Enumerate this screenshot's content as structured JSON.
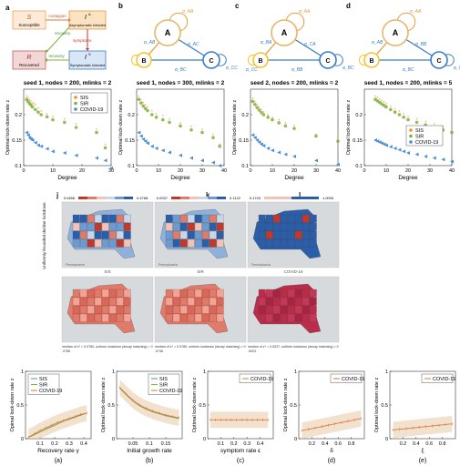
{
  "panel_letters": {
    "a": "a",
    "b": "b",
    "c": "c",
    "d": "d",
    "j": "j",
    "k": "k",
    "l": "l"
  },
  "compartment": {
    "S": {
      "sym": "S",
      "label": "Susceptible"
    },
    "R": {
      "sym": "R",
      "label": "Recovered"
    },
    "A": {
      "sym": "I",
      "sup": "A",
      "label": "Asymptomatic Infected"
    },
    "Sy": {
      "sym": "I",
      "sup": "S",
      "label": "Symptomatic Infected"
    },
    "contagion": "contagion",
    "recovery1": "recovery",
    "recovery2": "recovery",
    "symptoms": "symptoms"
  },
  "networks": {
    "nodes": [
      "A",
      "B",
      "C"
    ],
    "colors": {
      "A": "#e8b66a",
      "B": "#f2c531",
      "C": "#3b7dc4",
      "edge_orange": "#e69a3a",
      "edge_blue": "#3b7dc4"
    },
    "labels": {
      "b": [
        "α_AA",
        "α_AB",
        "α_AC",
        "α_BC",
        "α_CC"
      ],
      "c": [
        "α_AA",
        "α_BA",
        "α_CA",
        "α_BB",
        "α_BC",
        "α_CC"
      ],
      "d": [
        "α_AA",
        "α_AB",
        "α_BB",
        "α_BC",
        "α_CC"
      ]
    }
  },
  "colors": {
    "sis": "#f28e2b",
    "sir": "#7fb03a",
    "covid": "#4a8fd6",
    "covid_dark": "#2b6fc0",
    "line_orange": "#e07b39",
    "band": "#e8c9a8"
  },
  "scatter_titles": [
    "seed 1, nodes = 200, mlinks = 2",
    "seed 1, nodes = 300, mlinks = 2",
    "seed 2, nodes = 200, mlinks = 2",
    "seed 1, nodes = 200, mlinks = 5"
  ],
  "scatter_xlabel": "Degree",
  "scatter_ylabel": "Optimal lock-down rate z",
  "legend": {
    "sis": "SIS",
    "sir": "SIR",
    "covid": "COVID-19"
  },
  "map": {
    "col_titles": [
      "SIS",
      "SIR",
      "COVID-19"
    ],
    "ranges": [
      [
        "0.0456",
        "0.4768"
      ],
      [
        "0.0037",
        "0.1122"
      ],
      [
        "0.1743",
        "1.0000"
      ]
    ],
    "side_label": "Uniformly-bounded decline lockdown",
    "captions": [
      "median of z* = 0.0780, uniform lockdown (decay matching) = 0.0788",
      "median of z* = 0.0780, uniform lockdown (decay matching) = 0.0746",
      "median of z* = 0.0037, uniform lockdown (decay matching) = 0.0023"
    ],
    "region_labels": [
      "Ontario",
      "Pennsylvania",
      "Vermont"
    ]
  },
  "chart_data": [
    {
      "type": "scatter",
      "title": "seed 1, nodes = 200, mlinks = 2",
      "xlabel": "Degree",
      "ylabel": "Optimal lock-down rate z",
      "xlim": [
        0,
        30
      ],
      "ylim": [
        0.1,
        0.25
      ],
      "xticks": [
        0,
        10,
        20,
        30
      ],
      "yticks": [
        0.1,
        0.15,
        0.2
      ],
      "series": [
        {
          "name": "SIS",
          "x": [
            1,
            1.5,
            2,
            2.5,
            3,
            3.5,
            4,
            5,
            6,
            8,
            10,
            14,
            18,
            25,
            28
          ],
          "y": [
            0.235,
            0.232,
            0.228,
            0.225,
            0.222,
            0.22,
            0.218,
            0.212,
            0.205,
            0.2,
            0.195,
            0.19,
            0.18,
            0.17,
            0.14
          ]
        },
        {
          "name": "SIR",
          "x": [
            1,
            1.5,
            2,
            2.5,
            3,
            4,
            5,
            6,
            8,
            10,
            14,
            18,
            25,
            28
          ],
          "y": [
            0.23,
            0.226,
            0.222,
            0.219,
            0.215,
            0.21,
            0.205,
            0.2,
            0.196,
            0.19,
            0.185,
            0.175,
            0.165,
            0.135
          ]
        },
        {
          "name": "COVID-19",
          "x": [
            1,
            1.5,
            2,
            2.5,
            3,
            4,
            5,
            6,
            8,
            10,
            14,
            18,
            25,
            28,
            30
          ],
          "y": [
            0.165,
            0.16,
            0.155,
            0.152,
            0.15,
            0.145,
            0.14,
            0.138,
            0.133,
            0.128,
            0.125,
            0.12,
            0.115,
            0.11,
            0.095
          ]
        }
      ]
    },
    {
      "type": "scatter",
      "title": "seed 1, nodes = 300, mlinks = 2",
      "xlim": [
        0,
        40
      ],
      "ylim": [
        0.1,
        0.25
      ],
      "xticks": [
        0,
        10,
        20,
        30,
        40
      ],
      "yticks": [
        0.1,
        0.15,
        0.2
      ],
      "series": [
        {
          "name": "SIS",
          "x": [
            1,
            2,
            3,
            4,
            5,
            7,
            9,
            12,
            15,
            20,
            25,
            30,
            35,
            38
          ],
          "y": [
            0.235,
            0.228,
            0.222,
            0.218,
            0.213,
            0.206,
            0.2,
            0.196,
            0.19,
            0.182,
            0.175,
            0.17,
            0.16,
            0.14
          ]
        },
        {
          "name": "SIR",
          "x": [
            1,
            2,
            3,
            4,
            5,
            7,
            9,
            12,
            15,
            20,
            25,
            30,
            35,
            38
          ],
          "y": [
            0.23,
            0.223,
            0.217,
            0.212,
            0.208,
            0.2,
            0.195,
            0.19,
            0.185,
            0.178,
            0.17,
            0.165,
            0.155,
            0.138
          ]
        },
        {
          "name": "COVID-19",
          "x": [
            1,
            2,
            3,
            4,
            5,
            7,
            9,
            12,
            15,
            20,
            25,
            30,
            35,
            38
          ],
          "y": [
            0.165,
            0.158,
            0.152,
            0.148,
            0.144,
            0.138,
            0.134,
            0.13,
            0.126,
            0.12,
            0.115,
            0.11,
            0.106,
            0.1
          ]
        }
      ]
    },
    {
      "type": "scatter",
      "title": "seed 2, nodes = 200, mlinks = 2",
      "xlim": [
        0,
        40
      ],
      "ylim": [
        0.1,
        0.25
      ],
      "xticks": [
        0,
        10,
        20,
        30,
        40
      ],
      "yticks": [
        0.1,
        0.15,
        0.2
      ],
      "series": [
        {
          "name": "SIS",
          "x": [
            1,
            2,
            3,
            4,
            5,
            6,
            8,
            10,
            13,
            16,
            20,
            30,
            40
          ],
          "y": [
            0.23,
            0.224,
            0.218,
            0.213,
            0.208,
            0.204,
            0.198,
            0.193,
            0.188,
            0.182,
            0.177,
            0.16,
            0.15
          ]
        },
        {
          "name": "SIR",
          "x": [
            1,
            2,
            3,
            4,
            5,
            6,
            8,
            10,
            13,
            16,
            20,
            30,
            40
          ],
          "y": [
            0.226,
            0.22,
            0.214,
            0.209,
            0.204,
            0.2,
            0.195,
            0.19,
            0.184,
            0.178,
            0.173,
            0.158,
            0.148
          ]
        },
        {
          "name": "COVID-19",
          "x": [
            1,
            2,
            3,
            4,
            5,
            6,
            8,
            10,
            13,
            16,
            20,
            30,
            40
          ],
          "y": [
            0.16,
            0.155,
            0.15,
            0.146,
            0.142,
            0.139,
            0.134,
            0.13,
            0.126,
            0.122,
            0.118,
            0.11,
            0.102
          ]
        }
      ]
    },
    {
      "type": "scatter",
      "title": "seed 1, nodes = 200, mlinks = 5",
      "xlim": [
        0,
        40
      ],
      "ylim": [
        0.1,
        0.25
      ],
      "xticks": [
        0,
        10,
        20,
        30,
        40
      ],
      "yticks": [
        0.1,
        0.15,
        0.2
      ],
      "legend_position": "center-right",
      "series": [
        {
          "name": "SIS",
          "x": [
            5,
            6,
            7,
            8,
            9,
            10,
            12,
            14,
            16,
            18,
            20,
            24,
            28,
            32,
            36,
            40
          ],
          "y": [
            0.235,
            0.232,
            0.229,
            0.226,
            0.223,
            0.22,
            0.215,
            0.21,
            0.205,
            0.2,
            0.195,
            0.19,
            0.185,
            0.18,
            0.175,
            0.17
          ]
        },
        {
          "name": "SIR",
          "x": [
            5,
            6,
            7,
            8,
            9,
            10,
            12,
            14,
            16,
            18,
            20,
            24,
            28,
            32,
            36,
            40
          ],
          "y": [
            0.23,
            0.227,
            0.224,
            0.221,
            0.218,
            0.215,
            0.21,
            0.205,
            0.2,
            0.195,
            0.19,
            0.185,
            0.18,
            0.175,
            0.17,
            0.165
          ]
        },
        {
          "name": "COVID-19",
          "x": [
            5,
            6,
            7,
            8,
            9,
            10,
            12,
            14,
            16,
            18,
            20,
            24,
            28,
            32,
            36,
            40
          ],
          "y": [
            0.15,
            0.148,
            0.146,
            0.144,
            0.142,
            0.14,
            0.137,
            0.134,
            0.131,
            0.128,
            0.125,
            0.122,
            0.118,
            0.115,
            0.112,
            0.108
          ]
        }
      ]
    },
    {
      "type": "line",
      "caption": "(a)",
      "xlabel": "Recovery rate γ",
      "ylabel": "Opimal lock-down rate z",
      "xlim": [
        0,
        0.45
      ],
      "ylim": [
        0,
        1
      ],
      "xticks": [
        0.1,
        0.2,
        0.3,
        0.4
      ],
      "yticks": [
        0,
        0.5,
        1
      ],
      "legend_position": "top-left",
      "series": [
        {
          "name": "SIS",
          "x": [
            0.02,
            0.06,
            0.1,
            0.14,
            0.18,
            0.22,
            0.26,
            0.3,
            0.34,
            0.38,
            0.42
          ],
          "y": [
            0.02,
            0.06,
            0.1,
            0.14,
            0.18,
            0.22,
            0.26,
            0.29,
            0.32,
            0.35,
            0.38
          ]
        },
        {
          "name": "SIR",
          "x": [
            0.02,
            0.06,
            0.1,
            0.14,
            0.18,
            0.22,
            0.26,
            0.3,
            0.34,
            0.38,
            0.42
          ],
          "y": [
            0.02,
            0.06,
            0.1,
            0.14,
            0.18,
            0.22,
            0.26,
            0.29,
            0.32,
            0.35,
            0.38
          ]
        },
        {
          "name": "COVID-19",
          "x": [
            0.02,
            0.06,
            0.1,
            0.14,
            0.18,
            0.22,
            0.26,
            0.3,
            0.34,
            0.38,
            0.42
          ],
          "y": [
            0.02,
            0.07,
            0.12,
            0.16,
            0.2,
            0.24,
            0.27,
            0.3,
            0.33,
            0.36,
            0.38
          ]
        }
      ]
    },
    {
      "type": "line",
      "caption": "(b)",
      "xlabel": "Initial growth rate",
      "ylabel": "Optimal lock-down rate z",
      "xlim": [
        0,
        0.2
      ],
      "ylim": [
        0,
        1
      ],
      "xticks": [
        0.05,
        0.1,
        0.15
      ],
      "yticks": [
        0,
        0.5,
        1
      ],
      "legend_position": "top-right",
      "series": [
        {
          "name": "SIS",
          "x": [
            0.01,
            0.03,
            0.05,
            0.07,
            0.09,
            0.11,
            0.13,
            0.15,
            0.17,
            0.19
          ],
          "y": [
            0.75,
            0.65,
            0.56,
            0.49,
            0.44,
            0.4,
            0.37,
            0.34,
            0.32,
            0.3
          ]
        },
        {
          "name": "SIR",
          "x": [
            0.01,
            0.03,
            0.05,
            0.07,
            0.09,
            0.11,
            0.13,
            0.15,
            0.17,
            0.19
          ],
          "y": [
            0.75,
            0.65,
            0.56,
            0.49,
            0.44,
            0.4,
            0.37,
            0.34,
            0.32,
            0.3
          ]
        },
        {
          "name": "COVID-19",
          "x": [
            0.01,
            0.03,
            0.05,
            0.07,
            0.09,
            0.11,
            0.13,
            0.15,
            0.17,
            0.19
          ],
          "y": [
            0.76,
            0.66,
            0.57,
            0.5,
            0.45,
            0.41,
            0.38,
            0.35,
            0.33,
            0.31
          ]
        }
      ]
    },
    {
      "type": "line",
      "caption": "(c)",
      "xlabel": "symptom rate ϵ",
      "ylabel": "Optimal lock-down rate z",
      "xlim": [
        0,
        0.5
      ],
      "ylim": [
        0,
        1
      ],
      "xticks": [
        0.1,
        0.2,
        0.3,
        0.4
      ],
      "yticks": [
        0,
        0.5,
        1
      ],
      "legend_position": "top-right",
      "series": [
        {
          "name": "COVID-19",
          "x": [
            0.02,
            0.06,
            0.1,
            0.14,
            0.18,
            0.22,
            0.26,
            0.3,
            0.34,
            0.38,
            0.42,
            0.46
          ],
          "y": [
            0.28,
            0.28,
            0.28,
            0.28,
            0.28,
            0.28,
            0.28,
            0.28,
            0.28,
            0.28,
            0.28,
            0.28
          ]
        }
      ]
    },
    {
      "type": "line",
      "caption": "(d)",
      "xlabel": "δ",
      "ylabel": "Opimal lock-down rate z",
      "xlim": [
        0,
        1
      ],
      "ylim": [
        0,
        1
      ],
      "xticks": [
        0.2,
        0.4,
        0.6,
        0.8
      ],
      "yticks": [
        0,
        0.5,
        1
      ],
      "legend_position": "top-right",
      "series": [
        {
          "name": "COVID-19",
          "x": [
            0.05,
            0.15,
            0.25,
            0.35,
            0.45,
            0.55,
            0.65,
            0.75,
            0.85,
            0.95
          ],
          "y": [
            0.12,
            0.14,
            0.16,
            0.18,
            0.2,
            0.22,
            0.24,
            0.26,
            0.28,
            0.3
          ]
        }
      ]
    },
    {
      "type": "line",
      "caption": "(e)",
      "xlabel": "ξ",
      "ylabel": "Optimal lock-down rate z",
      "xlim": [
        0,
        1
      ],
      "ylim": [
        0,
        1
      ],
      "xticks": [
        0.2,
        0.4,
        0.6,
        0.8
      ],
      "yticks": [
        0,
        0.5,
        1
      ],
      "legend_position": "top-right",
      "series": [
        {
          "name": "COVID-19",
          "x": [
            0.05,
            0.15,
            0.25,
            0.35,
            0.45,
            0.55,
            0.65,
            0.75,
            0.85,
            0.95
          ],
          "y": [
            0.13,
            0.14,
            0.15,
            0.16,
            0.17,
            0.18,
            0.19,
            0.2,
            0.21,
            0.22
          ]
        }
      ]
    }
  ]
}
